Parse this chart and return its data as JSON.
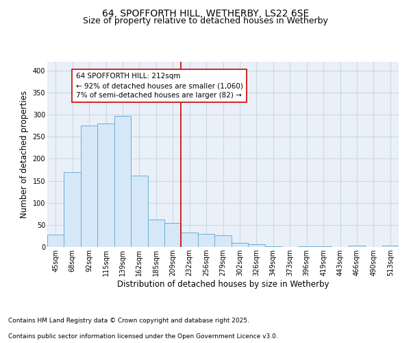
{
  "title": "64, SPOFFORTH HILL, WETHERBY, LS22 6SE",
  "subtitle": "Size of property relative to detached houses in Wetherby",
  "xlabel": "Distribution of detached houses by size in Wetherby",
  "ylabel": "Number of detached properties",
  "categories": [
    "45sqm",
    "68sqm",
    "92sqm",
    "115sqm",
    "139sqm",
    "162sqm",
    "185sqm",
    "209sqm",
    "232sqm",
    "256sqm",
    "279sqm",
    "302sqm",
    "326sqm",
    "349sqm",
    "373sqm",
    "396sqm",
    "419sqm",
    "443sqm",
    "466sqm",
    "490sqm",
    "513sqm"
  ],
  "values": [
    28,
    170,
    275,
    280,
    297,
    162,
    62,
    54,
    33,
    30,
    27,
    10,
    7,
    2,
    0,
    1,
    1,
    0,
    3,
    0,
    3
  ],
  "bar_color": "#d6e8f7",
  "bar_edge_color": "#6baed6",
  "vline_x_index": 7,
  "vline_color": "#cc0000",
  "annotation_text": "64 SPOFFORTH HILL: 212sqm\n← 92% of detached houses are smaller (1,060)\n7% of semi-detached houses are larger (82) →",
  "annotation_box_edge_color": "#cc0000",
  "ylim": [
    0,
    420
  ],
  "yticks": [
    0,
    50,
    100,
    150,
    200,
    250,
    300,
    350,
    400
  ],
  "background_color": "#ffffff",
  "plot_bg_color": "#eaf0f8",
  "grid_color": "#c8d8e8",
  "footer_line1": "Contains HM Land Registry data © Crown copyright and database right 2025.",
  "footer_line2": "Contains public sector information licensed under the Open Government Licence v3.0.",
  "title_fontsize": 10,
  "subtitle_fontsize": 9,
  "axis_label_fontsize": 8.5,
  "tick_fontsize": 7,
  "annotation_fontsize": 7.5,
  "footer_fontsize": 6.5
}
